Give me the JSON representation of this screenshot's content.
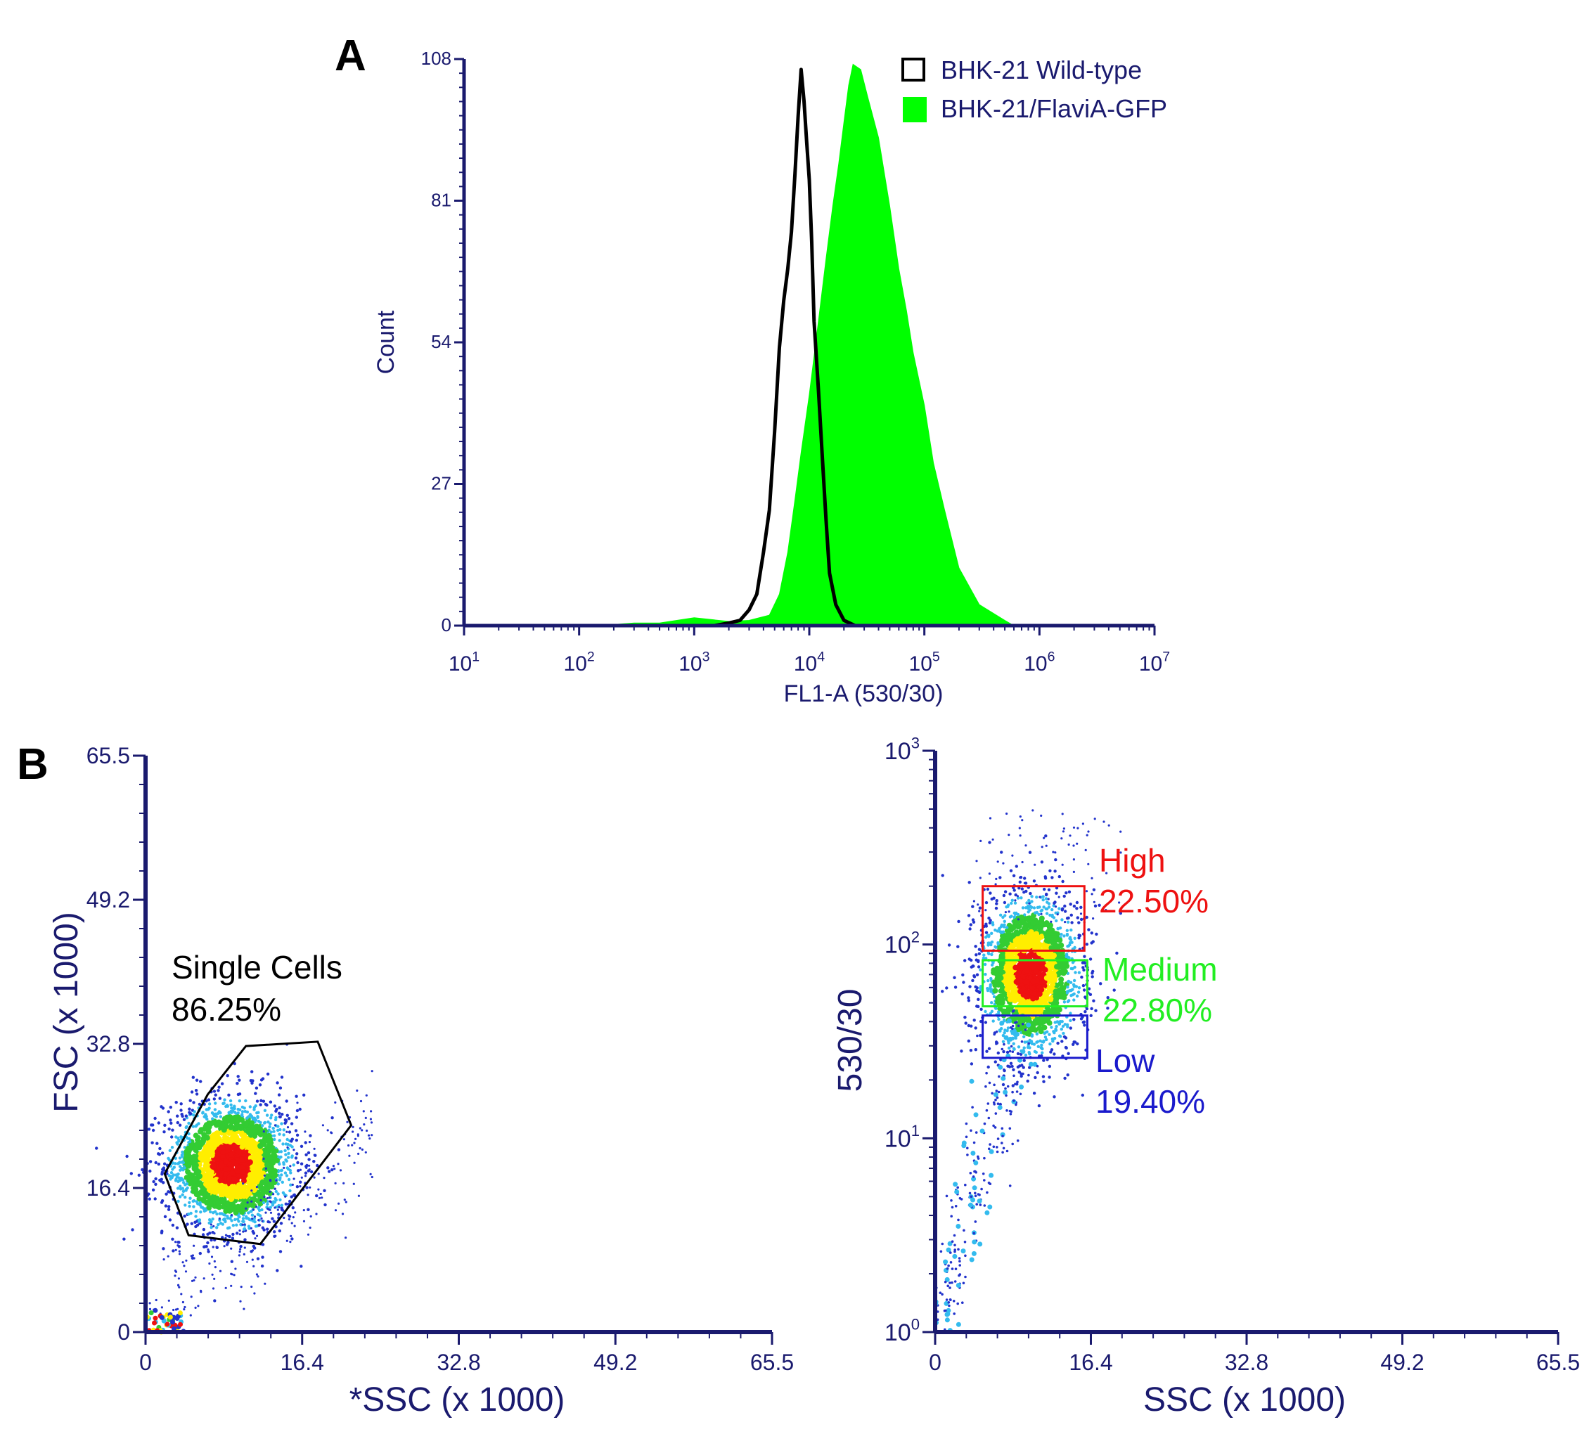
{
  "panel_labels": {
    "a": "A",
    "b": "B"
  },
  "colors": {
    "axis": "#1a1a6e",
    "wildtype": "#000000",
    "gfp": "#00ff00",
    "gate_high": "#ee1111",
    "gate_medium": "#22ee22",
    "gate_low": "#1a1acc",
    "gate_single": "#000000",
    "density_low": "#2233cc",
    "density_mid1": "#33bbee",
    "density_mid2": "#33cc33",
    "density_mid3": "#ffee00",
    "density_high": "#ee1111"
  },
  "chart_data": [
    {
      "id": "A",
      "type": "area",
      "xlabel": "FL1-A (530/30)",
      "ylabel": "Count",
      "x_scale": "log",
      "xlim": [
        10,
        10000000
      ],
      "ylim": [
        0,
        108
      ],
      "x_ticks": [
        {
          "value": 10,
          "base": "10",
          "exp": "1"
        },
        {
          "value": 100,
          "base": "10",
          "exp": "2"
        },
        {
          "value": 1000,
          "base": "10",
          "exp": "3"
        },
        {
          "value": 10000,
          "base": "10",
          "exp": "4"
        },
        {
          "value": 100000,
          "base": "10",
          "exp": "5"
        },
        {
          "value": 1000000,
          "base": "10",
          "exp": "6"
        },
        {
          "value": 10000000,
          "base": "10",
          "exp": "7"
        }
      ],
      "y_ticks": [
        {
          "value": 0,
          "label": "0"
        },
        {
          "value": 27,
          "label": "27"
        },
        {
          "value": 54,
          "label": "54"
        },
        {
          "value": 81,
          "label": "81"
        },
        {
          "value": 108,
          "label": "108"
        }
      ],
      "legend_position": "top-right",
      "series": [
        {
          "name": "BHK-21 Wild-type",
          "style": "outline",
          "color": "#000000",
          "x": [
            1500,
            2000,
            2500,
            3000,
            3500,
            4000,
            4500,
            5000,
            5500,
            6000,
            6500,
            7000,
            7500,
            8000,
            8500,
            9000,
            9500,
            10000,
            10500,
            11000,
            12000,
            13000,
            14000,
            15000,
            17000,
            20000,
            25000
          ],
          "y": [
            0,
            0.5,
            1,
            3,
            6,
            14,
            22,
            37,
            53,
            62,
            68,
            75,
            86,
            97,
            106,
            100,
            92,
            85,
            73,
            58,
            45,
            32,
            20,
            10,
            4,
            1,
            0
          ]
        },
        {
          "name": "BHK-21/FlaviA-GFP",
          "style": "filled",
          "color": "#00ff00",
          "x": [
            150,
            300,
            500,
            1000,
            2000,
            3000,
            4500,
            5500,
            6500,
            7500,
            8500,
            10000,
            12000,
            14000,
            16000,
            18000,
            20000,
            22000,
            24000,
            28000,
            32000,
            40000,
            50000,
            60000,
            70000,
            80000,
            100000,
            120000,
            150000,
            200000,
            300000,
            500000,
            600000
          ],
          "y": [
            0,
            0.5,
            0.5,
            1.5,
            0.8,
            1,
            2,
            6,
            14,
            24,
            33,
            44,
            58,
            70,
            80,
            88,
            96,
            103,
            107,
            106,
            101,
            93,
            80,
            68,
            60,
            52,
            42,
            31,
            22,
            11,
            4,
            1,
            0
          ]
        }
      ]
    },
    {
      "id": "B-left",
      "type": "scatter",
      "xlabel": "*SSC (x 1000)",
      "ylabel": "FSC (x 1000)",
      "xlim": [
        0,
        65.5
      ],
      "ylim": [
        0,
        65.5
      ],
      "x_ticks": [
        "0",
        "16.4",
        "32.8",
        "49.2",
        "65.5"
      ],
      "y_ticks": [
        "0",
        "16.4",
        "32.8",
        "49.2",
        "65.5"
      ],
      "cluster": {
        "center_x": 9,
        "center_y": 19,
        "spread_x": 3.5,
        "spread_y": 4
      },
      "gates": [
        {
          "name": "Single Cells",
          "value": "86.25%",
          "shape": "polygon",
          "points": [
            [
              2,
              18
            ],
            [
              6.5,
              27
            ],
            [
              10.5,
              32.5
            ],
            [
              18,
              33
            ],
            [
              21.5,
              23.5
            ],
            [
              12,
              10
            ],
            [
              4.5,
              11
            ]
          ]
        }
      ]
    },
    {
      "id": "B-right",
      "type": "scatter",
      "xlabel": "SSC (x 1000)",
      "ylabel": "530/30",
      "y_scale": "log",
      "xlim": [
        0,
        65.5
      ],
      "ylim": [
        1,
        1000
      ],
      "x_ticks": [
        "0",
        "16.4",
        "32.8",
        "49.2",
        "65.5"
      ],
      "y_ticks": [
        {
          "value": 1,
          "base": "10",
          "exp": "0"
        },
        {
          "value": 10,
          "base": "10",
          "exp": "1"
        },
        {
          "value": 100,
          "base": "10",
          "exp": "2"
        },
        {
          "value": 1000,
          "base": "10",
          "exp": "3"
        }
      ],
      "cluster": {
        "center_x": 10,
        "center_y": 70,
        "spread_x": 2.8
      },
      "gates": [
        {
          "name": "High",
          "value": "22.50%",
          "shape": "rectangle",
          "xlim": [
            5,
            15.7
          ],
          "ylim": [
            93,
            200
          ]
        },
        {
          "name": "Medium",
          "value": "22.80%",
          "shape": "rectangle",
          "xlim": [
            5,
            16
          ],
          "ylim": [
            48,
            83
          ]
        },
        {
          "name": "Low",
          "value": "19.40%",
          "shape": "rectangle",
          "xlim": [
            5,
            16
          ],
          "ylim": [
            26,
            43
          ]
        }
      ]
    }
  ]
}
